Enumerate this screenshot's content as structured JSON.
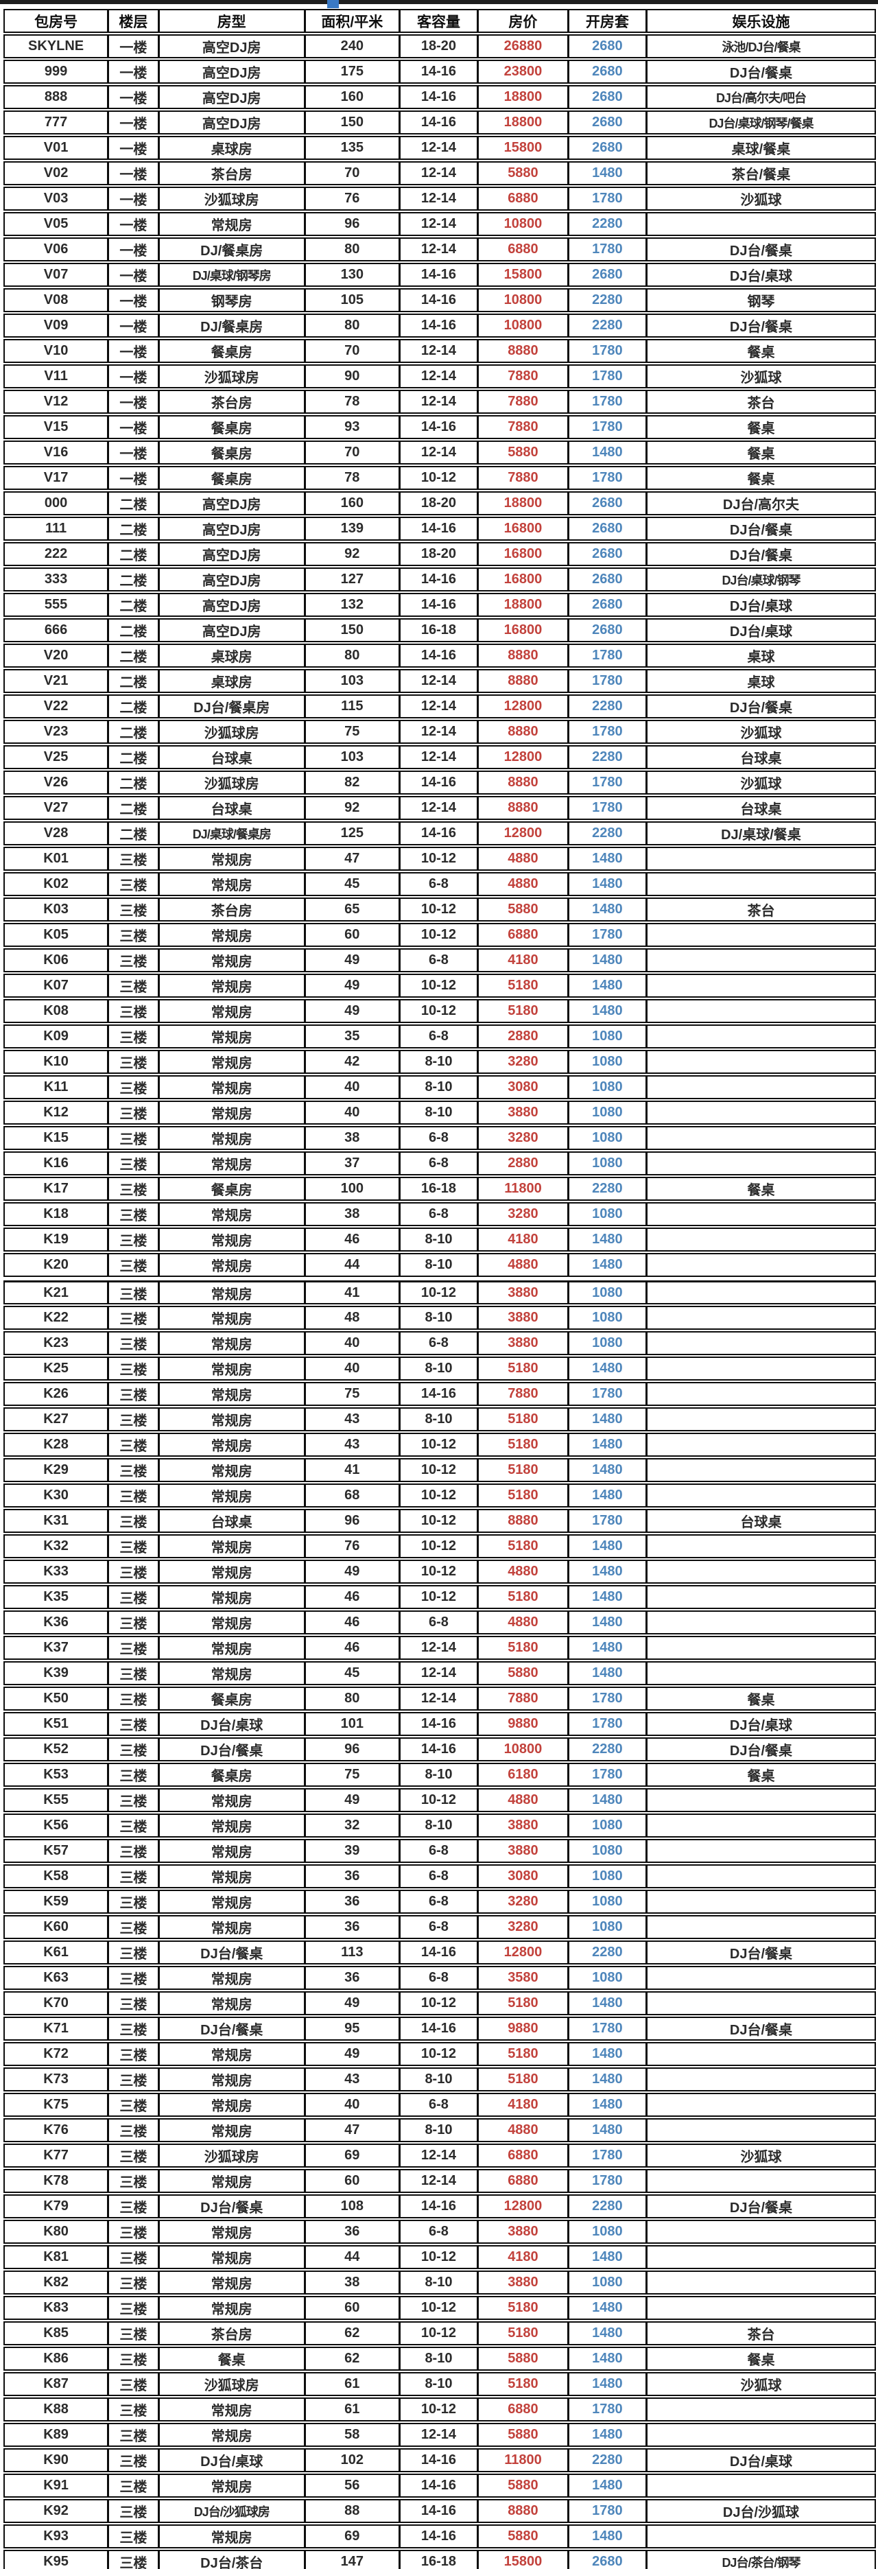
{
  "table": {
    "columns": [
      "包房号",
      "楼层",
      "房型",
      "面积/平米",
      "客容量",
      "房价",
      "开房套",
      "娱乐设施"
    ],
    "section_break_before_room": "K21",
    "rows": [
      [
        "SKYLNE",
        "一楼",
        "高空DJ房",
        "240",
        "18-20",
        "26880",
        "2680",
        "泳池/DJ台/餐桌"
      ],
      [
        "999",
        "一楼",
        "高空DJ房",
        "175",
        "14-16",
        "23800",
        "2680",
        "DJ台/餐桌"
      ],
      [
        "888",
        "一楼",
        "高空DJ房",
        "160",
        "14-16",
        "18800",
        "2680",
        "DJ台/高尔夫/吧台"
      ],
      [
        "777",
        "一楼",
        "高空DJ房",
        "150",
        "14-16",
        "18800",
        "2680",
        "DJ台/桌球/钢琴/餐桌"
      ],
      [
        "V01",
        "一楼",
        "桌球房",
        "135",
        "12-14",
        "15800",
        "2680",
        "桌球/餐桌"
      ],
      [
        "V02",
        "一楼",
        "茶台房",
        "70",
        "12-14",
        "5880",
        "1480",
        "茶台/餐桌"
      ],
      [
        "V03",
        "一楼",
        "沙狐球房",
        "76",
        "12-14",
        "6880",
        "1780",
        "沙狐球"
      ],
      [
        "V05",
        "一楼",
        "常规房",
        "96",
        "12-14",
        "10800",
        "2280",
        ""
      ],
      [
        "V06",
        "一楼",
        "DJ/餐桌房",
        "80",
        "12-14",
        "6880",
        "1780",
        "DJ台/餐桌"
      ],
      [
        "V07",
        "一楼",
        "DJ/桌球/钢琴房",
        "130",
        "14-16",
        "15800",
        "2680",
        "DJ台/桌球"
      ],
      [
        "V08",
        "一楼",
        "钢琴房",
        "105",
        "14-16",
        "10800",
        "2280",
        "钢琴"
      ],
      [
        "V09",
        "一楼",
        "DJ/餐桌房",
        "80",
        "14-16",
        "10800",
        "2280",
        "DJ台/餐桌"
      ],
      [
        "V10",
        "一楼",
        "餐桌房",
        "70",
        "12-14",
        "8880",
        "1780",
        "餐桌"
      ],
      [
        "V11",
        "一楼",
        "沙狐球房",
        "90",
        "12-14",
        "7880",
        "1780",
        "沙狐球"
      ],
      [
        "V12",
        "一楼",
        "茶台房",
        "78",
        "12-14",
        "7880",
        "1780",
        "茶台"
      ],
      [
        "V15",
        "一楼",
        "餐桌房",
        "93",
        "14-16",
        "7880",
        "1780",
        "餐桌"
      ],
      [
        "V16",
        "一楼",
        "餐桌房",
        "70",
        "12-14",
        "5880",
        "1480",
        "餐桌"
      ],
      [
        "V17",
        "一楼",
        "餐桌房",
        "78",
        "10-12",
        "7880",
        "1780",
        "餐桌"
      ],
      [
        "000",
        "二楼",
        "高空DJ房",
        "160",
        "18-20",
        "18800",
        "2680",
        "DJ台/高尔夫"
      ],
      [
        "111",
        "二楼",
        "高空DJ房",
        "139",
        "14-16",
        "16800",
        "2680",
        "DJ台/餐桌"
      ],
      [
        "222",
        "二楼",
        "高空DJ房",
        "92",
        "18-20",
        "16800",
        "2680",
        "DJ台/餐桌"
      ],
      [
        "333",
        "二楼",
        "高空DJ房",
        "127",
        "14-16",
        "16800",
        "2680",
        "DJ台/桌球/钢琴"
      ],
      [
        "555",
        "二楼",
        "高空DJ房",
        "132",
        "14-16",
        "18800",
        "2680",
        "DJ台/桌球"
      ],
      [
        "666",
        "二楼",
        "高空DJ房",
        "150",
        "16-18",
        "16800",
        "2680",
        "DJ台/桌球"
      ],
      [
        "V20",
        "二楼",
        "桌球房",
        "80",
        "14-16",
        "8880",
        "1780",
        "桌球"
      ],
      [
        "V21",
        "二楼",
        "桌球房",
        "103",
        "12-14",
        "8880",
        "1780",
        "桌球"
      ],
      [
        "V22",
        "二楼",
        "DJ台/餐桌房",
        "115",
        "12-14",
        "12800",
        "2280",
        "DJ台/餐桌"
      ],
      [
        "V23",
        "二楼",
        "沙狐球房",
        "75",
        "12-14",
        "8880",
        "1780",
        "沙狐球"
      ],
      [
        "V25",
        "二楼",
        "台球桌",
        "103",
        "12-14",
        "12800",
        "2280",
        "台球桌"
      ],
      [
        "V26",
        "二楼",
        "沙狐球房",
        "82",
        "14-16",
        "8880",
        "1780",
        "沙狐球"
      ],
      [
        "V27",
        "二楼",
        "台球桌",
        "92",
        "12-14",
        "8880",
        "1780",
        "台球桌"
      ],
      [
        "V28",
        "二楼",
        "DJ/桌球/餐桌房",
        "125",
        "14-16",
        "12800",
        "2280",
        "DJ/桌球/餐桌"
      ],
      [
        "K01",
        "三楼",
        "常规房",
        "47",
        "10-12",
        "4880",
        "1480",
        ""
      ],
      [
        "K02",
        "三楼",
        "常规房",
        "45",
        "6-8",
        "4880",
        "1480",
        ""
      ],
      [
        "K03",
        "三楼",
        "茶台房",
        "65",
        "10-12",
        "5880",
        "1480",
        "茶台"
      ],
      [
        "K05",
        "三楼",
        "常规房",
        "60",
        "10-12",
        "6880",
        "1780",
        ""
      ],
      [
        "K06",
        "三楼",
        "常规房",
        "49",
        "6-8",
        "4180",
        "1480",
        ""
      ],
      [
        "K07",
        "三楼",
        "常规房",
        "49",
        "10-12",
        "5180",
        "1480",
        ""
      ],
      [
        "K08",
        "三楼",
        "常规房",
        "49",
        "10-12",
        "5180",
        "1480",
        ""
      ],
      [
        "K09",
        "三楼",
        "常规房",
        "35",
        "6-8",
        "2880",
        "1080",
        ""
      ],
      [
        "K10",
        "三楼",
        "常规房",
        "42",
        "8-10",
        "3280",
        "1080",
        ""
      ],
      [
        "K11",
        "三楼",
        "常规房",
        "40",
        "8-10",
        "3080",
        "1080",
        ""
      ],
      [
        "K12",
        "三楼",
        "常规房",
        "40",
        "8-10",
        "3880",
        "1080",
        ""
      ],
      [
        "K15",
        "三楼",
        "常规房",
        "38",
        "6-8",
        "3280",
        "1080",
        ""
      ],
      [
        "K16",
        "三楼",
        "常规房",
        "37",
        "6-8",
        "2880",
        "1080",
        ""
      ],
      [
        "K17",
        "三楼",
        "餐桌房",
        "100",
        "16-18",
        "11800",
        "2280",
        "餐桌"
      ],
      [
        "K18",
        "三楼",
        "常规房",
        "38",
        "6-8",
        "3280",
        "1080",
        ""
      ],
      [
        "K19",
        "三楼",
        "常规房",
        "46",
        "8-10",
        "4180",
        "1480",
        ""
      ],
      [
        "K20",
        "三楼",
        "常规房",
        "44",
        "8-10",
        "4880",
        "1480",
        ""
      ],
      [
        "K21",
        "三楼",
        "常规房",
        "41",
        "10-12",
        "3880",
        "1080",
        ""
      ],
      [
        "K22",
        "三楼",
        "常规房",
        "48",
        "8-10",
        "3880",
        "1080",
        ""
      ],
      [
        "K23",
        "三楼",
        "常规房",
        "40",
        "6-8",
        "3880",
        "1080",
        ""
      ],
      [
        "K25",
        "三楼",
        "常规房",
        "40",
        "8-10",
        "5180",
        "1480",
        ""
      ],
      [
        "K26",
        "三楼",
        "常规房",
        "75",
        "14-16",
        "7880",
        "1780",
        ""
      ],
      [
        "K27",
        "三楼",
        "常规房",
        "43",
        "8-10",
        "5180",
        "1480",
        ""
      ],
      [
        "K28",
        "三楼",
        "常规房",
        "43",
        "10-12",
        "5180",
        "1480",
        ""
      ],
      [
        "K29",
        "三楼",
        "常规房",
        "41",
        "10-12",
        "5180",
        "1480",
        ""
      ],
      [
        "K30",
        "三楼",
        "常规房",
        "68",
        "10-12",
        "5180",
        "1480",
        ""
      ],
      [
        "K31",
        "三楼",
        "台球桌",
        "96",
        "10-12",
        "8880",
        "1780",
        "台球桌"
      ],
      [
        "K32",
        "三楼",
        "常规房",
        "76",
        "10-12",
        "5180",
        "1480",
        ""
      ],
      [
        "K33",
        "三楼",
        "常规房",
        "49",
        "10-12",
        "4880",
        "1480",
        ""
      ],
      [
        "K35",
        "三楼",
        "常规房",
        "46",
        "10-12",
        "5180",
        "1480",
        ""
      ],
      [
        "K36",
        "三楼",
        "常规房",
        "46",
        "6-8",
        "4880",
        "1480",
        ""
      ],
      [
        "K37",
        "三楼",
        "常规房",
        "46",
        "12-14",
        "5180",
        "1480",
        ""
      ],
      [
        "K39",
        "三楼",
        "常规房",
        "45",
        "12-14",
        "5880",
        "1480",
        ""
      ],
      [
        "K50",
        "三楼",
        "餐桌房",
        "80",
        "12-14",
        "7880",
        "1780",
        "餐桌"
      ],
      [
        "K51",
        "三楼",
        "DJ台/桌球",
        "101",
        "14-16",
        "9880",
        "1780",
        "DJ台/桌球"
      ],
      [
        "K52",
        "三楼",
        "DJ台/餐桌",
        "96",
        "14-16",
        "10800",
        "2280",
        "DJ台/餐桌"
      ],
      [
        "K53",
        "三楼",
        "餐桌房",
        "75",
        "8-10",
        "6180",
        "1780",
        "餐桌"
      ],
      [
        "K55",
        "三楼",
        "常规房",
        "49",
        "10-12",
        "4880",
        "1480",
        ""
      ],
      [
        "K56",
        "三楼",
        "常规房",
        "32",
        "8-10",
        "3880",
        "1080",
        ""
      ],
      [
        "K57",
        "三楼",
        "常规房",
        "39",
        "6-8",
        "3880",
        "1080",
        ""
      ],
      [
        "K58",
        "三楼",
        "常规房",
        "36",
        "6-8",
        "3080",
        "1080",
        ""
      ],
      [
        "K59",
        "三楼",
        "常规房",
        "36",
        "6-8",
        "3280",
        "1080",
        ""
      ],
      [
        "K60",
        "三楼",
        "常规房",
        "36",
        "6-8",
        "3280",
        "1080",
        ""
      ],
      [
        "K61",
        "三楼",
        "DJ台/餐桌",
        "113",
        "14-16",
        "12800",
        "2280",
        "DJ台/餐桌"
      ],
      [
        "K63",
        "三楼",
        "常规房",
        "36",
        "6-8",
        "3580",
        "1080",
        ""
      ],
      [
        "K70",
        "三楼",
        "常规房",
        "49",
        "10-12",
        "5180",
        "1480",
        ""
      ],
      [
        "K71",
        "三楼",
        "DJ台/餐桌",
        "95",
        "14-16",
        "9880",
        "1780",
        "DJ台/餐桌"
      ],
      [
        "K72",
        "三楼",
        "常规房",
        "49",
        "10-12",
        "5180",
        "1480",
        ""
      ],
      [
        "K73",
        "三楼",
        "常规房",
        "43",
        "8-10",
        "5180",
        "1480",
        ""
      ],
      [
        "K75",
        "三楼",
        "常规房",
        "40",
        "6-8",
        "4180",
        "1480",
        ""
      ],
      [
        "K76",
        "三楼",
        "常规房",
        "47",
        "8-10",
        "4880",
        "1480",
        ""
      ],
      [
        "K77",
        "三楼",
        "沙狐球房",
        "69",
        "12-14",
        "6880",
        "1780",
        "沙狐球"
      ],
      [
        "K78",
        "三楼",
        "常规房",
        "60",
        "12-14",
        "6880",
        "1780",
        ""
      ],
      [
        "K79",
        "三楼",
        "DJ台/餐桌",
        "108",
        "14-16",
        "12800",
        "2280",
        "DJ台/餐桌"
      ],
      [
        "K80",
        "三楼",
        "常规房",
        "36",
        "6-8",
        "3880",
        "1080",
        ""
      ],
      [
        "K81",
        "三楼",
        "常规房",
        "44",
        "10-12",
        "4180",
        "1480",
        ""
      ],
      [
        "K82",
        "三楼",
        "常规房",
        "38",
        "8-10",
        "3880",
        "1080",
        ""
      ],
      [
        "K83",
        "三楼",
        "常规房",
        "60",
        "10-12",
        "5180",
        "1480",
        ""
      ],
      [
        "K85",
        "三楼",
        "茶台房",
        "62",
        "10-12",
        "5180",
        "1480",
        "茶台"
      ],
      [
        "K86",
        "三楼",
        "餐桌",
        "62",
        "8-10",
        "5880",
        "1480",
        "餐桌"
      ],
      [
        "K87",
        "三楼",
        "沙狐球房",
        "61",
        "8-10",
        "5180",
        "1480",
        "沙狐球"
      ],
      [
        "K88",
        "三楼",
        "常规房",
        "61",
        "10-12",
        "6880",
        "1780",
        ""
      ],
      [
        "K89",
        "三楼",
        "常规房",
        "58",
        "12-14",
        "5880",
        "1480",
        ""
      ],
      [
        "K90",
        "三楼",
        "DJ台/桌球",
        "102",
        "14-16",
        "11800",
        "2280",
        "DJ台/桌球"
      ],
      [
        "K91",
        "三楼",
        "常规房",
        "56",
        "14-16",
        "5880",
        "1480",
        ""
      ],
      [
        "K92",
        "三楼",
        "DJ台/沙狐球房",
        "88",
        "14-16",
        "8880",
        "1780",
        "DJ台/沙狐球"
      ],
      [
        "K93",
        "三楼",
        "常规房",
        "69",
        "14-16",
        "5880",
        "1480",
        ""
      ],
      [
        "K95",
        "三楼",
        "DJ台/茶台",
        "147",
        "16-18",
        "15800",
        "2680",
        "DJ台/茶台/钢琴"
      ]
    ]
  },
  "colors": {
    "price_red": "#c2423c",
    "package_blue": "#4e86bb",
    "border_black": "#0d0d0d",
    "top_bar_dark": "#1e1e1e",
    "top_notch_blue": "#3a79c4"
  }
}
